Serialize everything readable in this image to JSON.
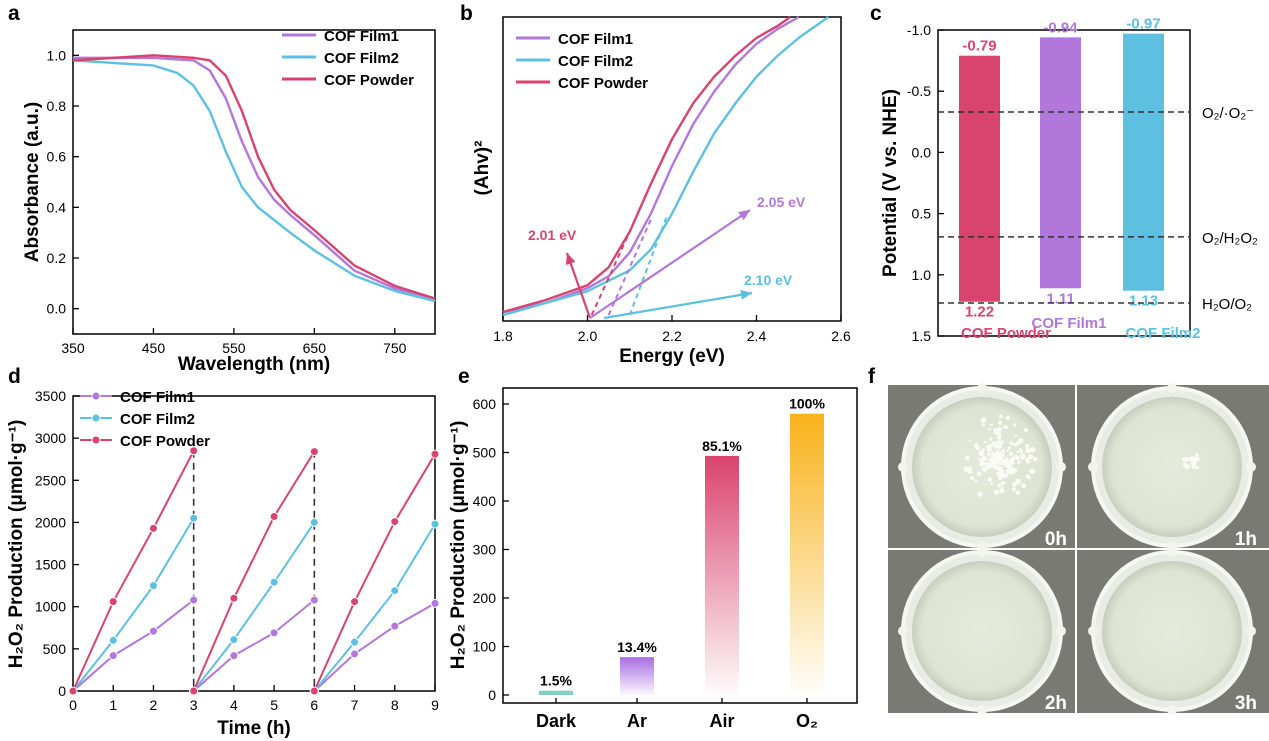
{
  "colors": {
    "film1": "#b277db",
    "film2": "#5ec0e0",
    "powder": "#d9436f",
    "ar": "#a86ee0",
    "air": "#d9436f",
    "o2": "#f8b21a"
  },
  "panel_labels": {
    "a": "a",
    "b": "b",
    "c": "c",
    "d": "d",
    "e": "e",
    "f": "f"
  },
  "chart_data": [
    {
      "id": "a",
      "type": "line",
      "xlabel": "Wavelength (nm)",
      "ylabel": "Absorbance (a.u.)",
      "xlim": [
        350,
        800
      ],
      "ylim": [
        -0.1,
        1.1
      ],
      "xticks": [
        "350",
        "450",
        "550",
        "650",
        "750"
      ],
      "yticks": [
        "0.0",
        "0.2",
        "0.4",
        "0.6",
        "0.8",
        "1.0"
      ],
      "legend": [
        "COF Film1",
        "COF Film2",
        "COF Powder"
      ],
      "series": [
        {
          "name": "COF Film1",
          "x": [
            350,
            400,
            450,
            500,
            520,
            540,
            560,
            580,
            600,
            620,
            650,
            700,
            750,
            800
          ],
          "y": [
            0.99,
            0.99,
            0.99,
            0.98,
            0.94,
            0.83,
            0.66,
            0.52,
            0.43,
            0.37,
            0.29,
            0.15,
            0.08,
            0.04
          ]
        },
        {
          "name": "COF Film2",
          "x": [
            350,
            400,
            450,
            480,
            500,
            520,
            540,
            560,
            580,
            600,
            620,
            650,
            700,
            750,
            800
          ],
          "y": [
            0.98,
            0.97,
            0.96,
            0.93,
            0.88,
            0.78,
            0.62,
            0.48,
            0.4,
            0.35,
            0.3,
            0.23,
            0.13,
            0.07,
            0.03
          ]
        },
        {
          "name": "COF Powder",
          "x": [
            350,
            400,
            450,
            500,
            520,
            540,
            560,
            580,
            600,
            620,
            650,
            700,
            750,
            800
          ],
          "y": [
            0.98,
            0.99,
            1.0,
            0.99,
            0.98,
            0.92,
            0.78,
            0.6,
            0.47,
            0.39,
            0.31,
            0.17,
            0.09,
            0.04
          ]
        }
      ]
    },
    {
      "id": "b",
      "type": "line",
      "xlabel": "Energy (eV)",
      "ylabel": "(Ahv)²",
      "xlim": [
        1.8,
        2.6
      ],
      "ylim": [
        0,
        1
      ],
      "xticks": [
        "1.8",
        "2.0",
        "2.2",
        "2.4",
        "2.6"
      ],
      "legend": [
        "COF Film1",
        "COF Film2",
        "COF Powder"
      ],
      "annotations": [
        "2.01 eV",
        "2.05 eV",
        "2.10 eV"
      ],
      "band_gaps": [
        2.01,
        2.05,
        2.1
      ],
      "series": [
        {
          "name": "COF Film1",
          "x": [
            1.8,
            1.9,
            2.0,
            2.05,
            2.1,
            2.15,
            2.2,
            2.25,
            2.3,
            2.35,
            2.4,
            2.45,
            2.5
          ],
          "y": [
            0.01,
            0.04,
            0.09,
            0.13,
            0.21,
            0.34,
            0.5,
            0.64,
            0.75,
            0.84,
            0.91,
            0.96,
            1.0
          ]
        },
        {
          "name": "COF Film2",
          "x": [
            1.8,
            1.9,
            2.0,
            2.1,
            2.15,
            2.2,
            2.25,
            2.3,
            2.35,
            2.4,
            2.45,
            2.5,
            2.57
          ],
          "y": [
            0.0,
            0.04,
            0.08,
            0.15,
            0.22,
            0.34,
            0.48,
            0.61,
            0.71,
            0.8,
            0.87,
            0.93,
            1.0
          ]
        },
        {
          "name": "COF Powder",
          "x": [
            1.8,
            1.9,
            2.0,
            2.05,
            2.1,
            2.15,
            2.2,
            2.25,
            2.3,
            2.35,
            2.4,
            2.45,
            2.48
          ],
          "y": [
            0.01,
            0.05,
            0.1,
            0.16,
            0.28,
            0.44,
            0.59,
            0.71,
            0.8,
            0.87,
            0.93,
            0.97,
            1.0
          ]
        }
      ]
    },
    {
      "id": "c",
      "type": "bar",
      "ylabel": "Potential (V vs. NHE)",
      "ylim": [
        1.5,
        -1.0
      ],
      "yticks": [
        "-1.0",
        "-0.5",
        "0.0",
        "0.5",
        "1.0",
        "1.5"
      ],
      "categories": [
        "COF Powder",
        "COF Film1",
        "COF Film2"
      ],
      "cb": [
        -0.79,
        -0.94,
        -0.97
      ],
      "vb": [
        1.22,
        1.11,
        1.13
      ],
      "cb_labels": [
        "-0.79",
        "-0.94",
        "-0.97"
      ],
      "vb_labels": [
        "1.22",
        "1.11",
        "1.13"
      ],
      "reference_levels": [
        {
          "name": "O₂/·O₂⁻",
          "value": -0.33
        },
        {
          "name": "O₂/H₂O₂",
          "value": 0.69
        },
        {
          "name": "H₂O/O₂",
          "value": 1.23
        }
      ]
    },
    {
      "id": "d",
      "type": "line",
      "xlabel": "Time (h)",
      "ylabel": "H₂O₂ Production (μmol·g⁻¹)",
      "xlim": [
        0,
        9
      ],
      "ylim": [
        0,
        3500
      ],
      "xticks": [
        "0",
        "1",
        "2",
        "3",
        "4",
        "5",
        "6",
        "7",
        "8",
        "9"
      ],
      "yticks": [
        "0",
        "500",
        "1000",
        "1500",
        "2000",
        "2500",
        "3000",
        "3500"
      ],
      "legend": [
        "COF Film1",
        "COF Film2",
        "COF Powder"
      ],
      "cycle_breaks": [
        3,
        6
      ],
      "series": [
        {
          "name": "COF Film1",
          "cycles": [
            [
              [
                0,
                0
              ],
              [
                1,
                420
              ],
              [
                2,
                710
              ],
              [
                3,
                1080
              ]
            ],
            [
              [
                3,
                0
              ],
              [
                4,
                420
              ],
              [
                5,
                690
              ],
              [
                6,
                1080
              ]
            ],
            [
              [
                6,
                0
              ],
              [
                7,
                440
              ],
              [
                8,
                770
              ],
              [
                9,
                1040
              ]
            ]
          ]
        },
        {
          "name": "COF Film2",
          "cycles": [
            [
              [
                0,
                0
              ],
              [
                1,
                600
              ],
              [
                2,
                1250
              ],
              [
                3,
                2050
              ]
            ],
            [
              [
                3,
                0
              ],
              [
                4,
                610
              ],
              [
                5,
                1290
              ],
              [
                6,
                2000
              ]
            ],
            [
              [
                6,
                0
              ],
              [
                7,
                580
              ],
              [
                8,
                1190
              ],
              [
                9,
                1980
              ]
            ]
          ]
        },
        {
          "name": "COF Powder",
          "cycles": [
            [
              [
                0,
                0
              ],
              [
                1,
                1060
              ],
              [
                2,
                1930
              ],
              [
                3,
                2850
              ]
            ],
            [
              [
                3,
                0
              ],
              [
                4,
                1100
              ],
              [
                5,
                2070
              ],
              [
                6,
                2840
              ]
            ],
            [
              [
                6,
                0
              ],
              [
                7,
                1060
              ],
              [
                8,
                2010
              ],
              [
                9,
                2810
              ]
            ]
          ]
        }
      ]
    },
    {
      "id": "e",
      "type": "bar",
      "ylabel": "H₂O₂ Production (μmol·g⁻¹)",
      "ylim": [
        0,
        640
      ],
      "yticks": [
        "0",
        "100",
        "200",
        "300",
        "400",
        "500",
        "600"
      ],
      "categories": [
        "Dark",
        "Ar",
        "Air",
        "O₂"
      ],
      "values": [
        9,
        78,
        493,
        580
      ],
      "labels": [
        "1.5%",
        "13.4%",
        "85.1%",
        "100%"
      ]
    }
  ],
  "photos": {
    "labels": [
      "0h",
      "1h",
      "2h",
      "3h"
    ]
  }
}
